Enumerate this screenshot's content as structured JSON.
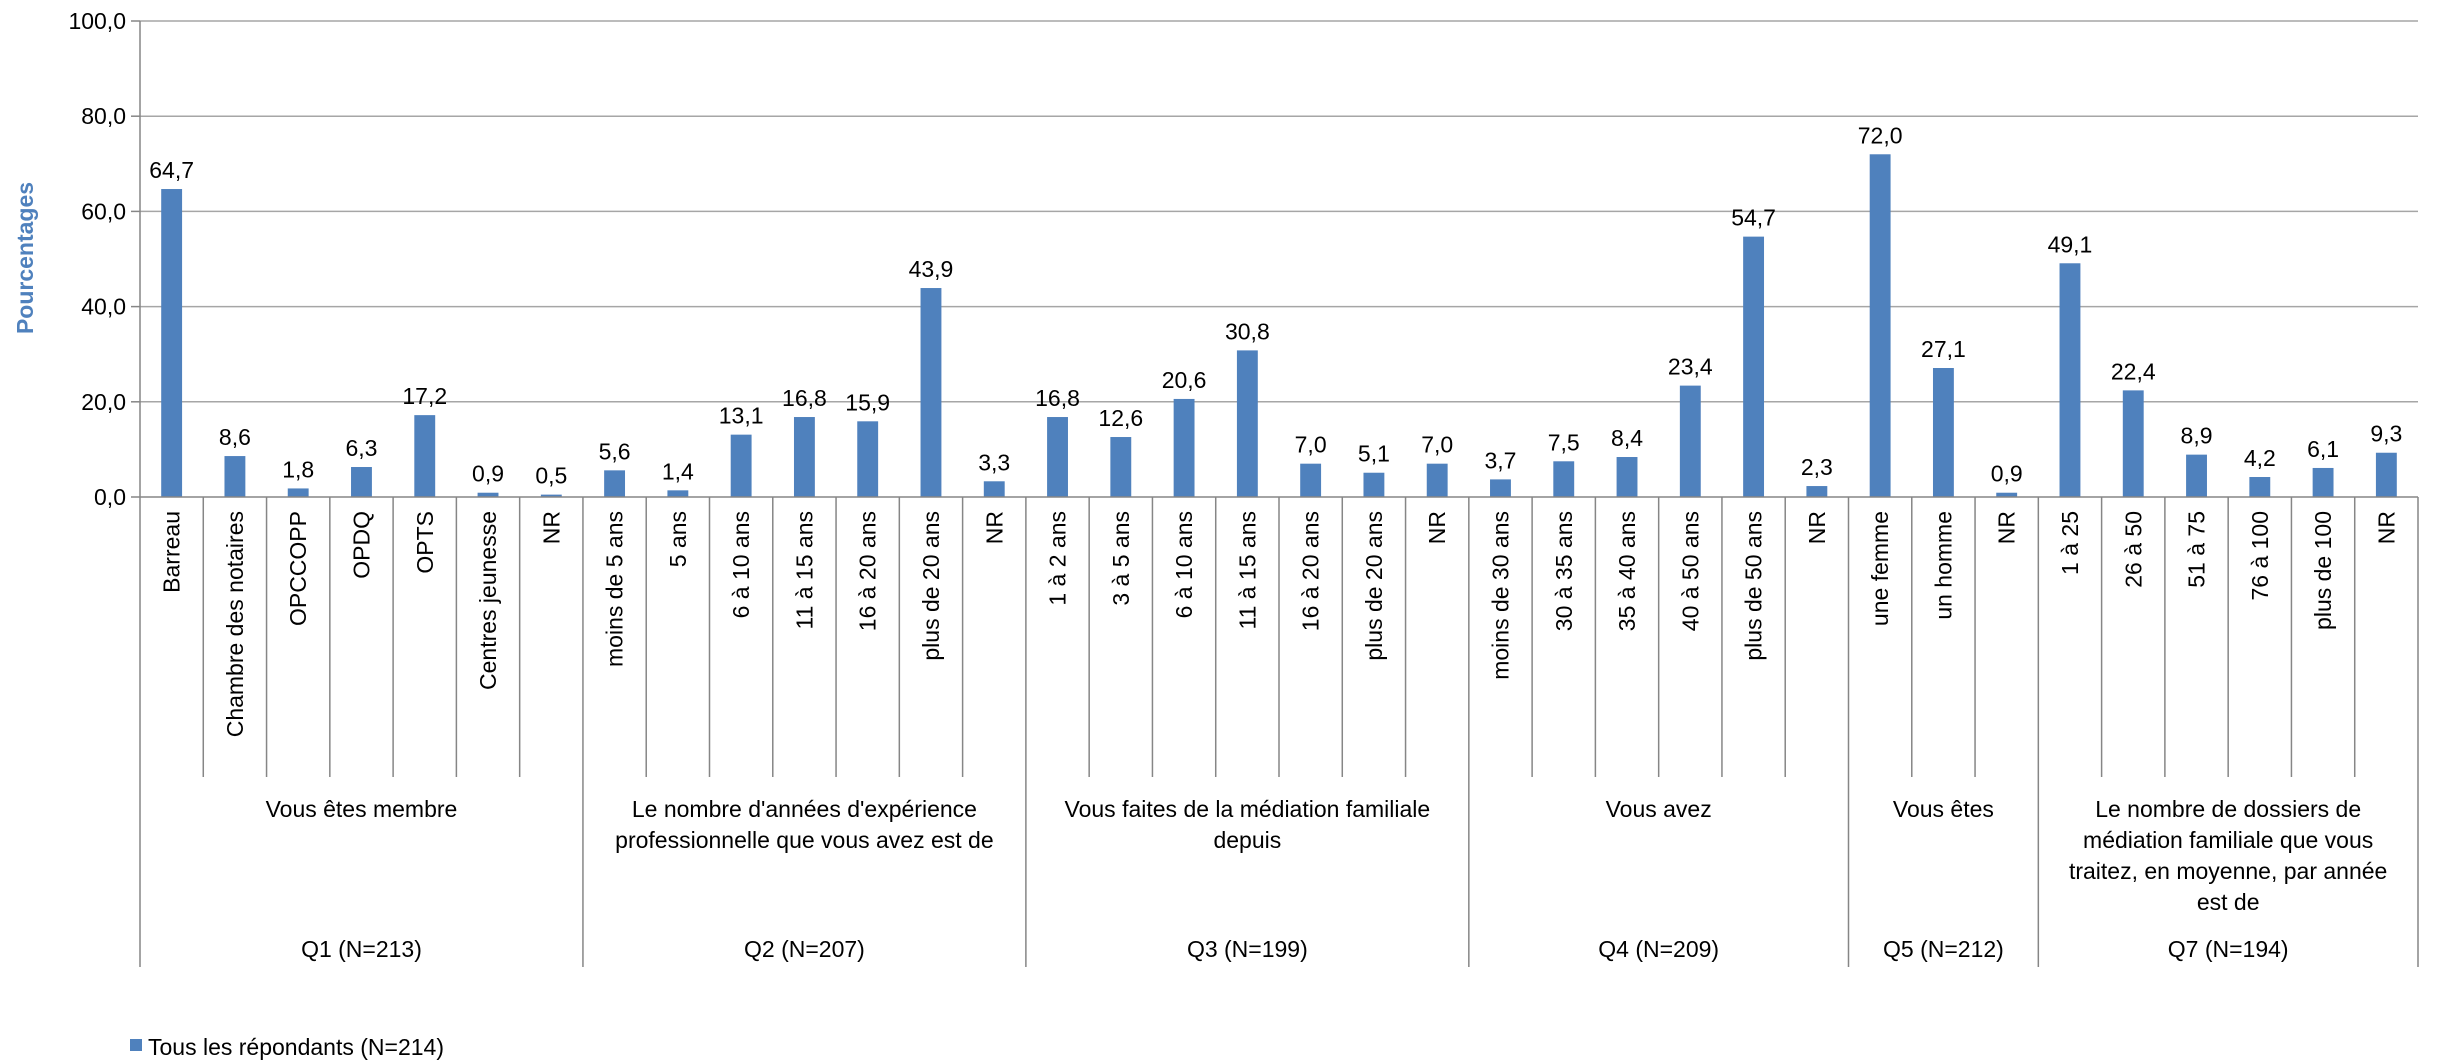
{
  "colors": {
    "bar": "#4F81BD",
    "axis_title": "#4F81BD",
    "grid": "#A6A6A6",
    "axis": "#868686",
    "text": "#000000"
  },
  "chart_data": {
    "type": "bar",
    "ylabel": "Pourcentages",
    "ylim": [
      0,
      100
    ],
    "yticks": [
      "0,0",
      "20,0",
      "40,0",
      "60,0",
      "80,0",
      "100,0"
    ],
    "grid": true,
    "legend_position": "bottom-left",
    "series": [
      {
        "name": "Tous les répondants (N=214)"
      }
    ],
    "groups": [
      {
        "question": "Q1 (N=213)",
        "label": [
          "Vous êtes membre"
        ],
        "categories": [
          "Barreau",
          "Chambre des notaires",
          "OPCCOPP",
          "OPDQ",
          "OPTS",
          "Centres jeunesse",
          "NR"
        ],
        "values": [
          64.7,
          8.6,
          1.8,
          6.3,
          17.2,
          0.9,
          0.5
        ],
        "value_labels": [
          "64,7",
          "8,6",
          "1,8",
          "6,3",
          "17,2",
          "0,9",
          "0,5"
        ]
      },
      {
        "question": "Q2 (N=207)",
        "label": [
          "Le nombre d'années d'expérience",
          "professionnelle que vous avez est de"
        ],
        "categories": [
          "moins de 5 ans",
          "5 ans",
          "6 à 10 ans",
          "11 à 15 ans",
          "16 à 20 ans",
          "plus de 20 ans",
          "NR"
        ],
        "values": [
          5.6,
          1.4,
          13.1,
          16.8,
          15.9,
          43.9,
          3.3
        ],
        "value_labels": [
          "5,6",
          "1,4",
          "13,1",
          "16,8",
          "15,9",
          "43,9",
          "3,3"
        ]
      },
      {
        "question": "Q3 (N=199)",
        "label": [
          "Vous faites de la médiation familiale",
          "depuis"
        ],
        "categories": [
          "1 à 2 ans",
          "3 à 5 ans",
          "6 à 10 ans",
          "11 à 15 ans",
          "16 à 20 ans",
          "plus de 20 ans",
          "NR"
        ],
        "values": [
          16.8,
          12.6,
          20.6,
          30.8,
          7.0,
          5.1,
          7.0
        ],
        "value_labels": [
          "16,8",
          "12,6",
          "20,6",
          "30,8",
          "7,0",
          "5,1",
          "7,0"
        ]
      },
      {
        "question": "Q4 (N=209)",
        "label": [
          "Vous avez"
        ],
        "categories": [
          "moins de 30 ans",
          "30 à 35 ans",
          "35 à 40 ans",
          "40 à 50 ans",
          "plus de 50 ans",
          "NR"
        ],
        "values": [
          3.7,
          7.5,
          8.4,
          23.4,
          54.7,
          2.3
        ],
        "value_labels": [
          "3,7",
          "7,5",
          "8,4",
          "23,4",
          "54,7",
          "2,3"
        ]
      },
      {
        "question": "Q5 (N=212)",
        "label": [
          "Vous êtes"
        ],
        "categories": [
          "une femme",
          "un homme",
          "NR"
        ],
        "values": [
          72.0,
          27.1,
          0.9
        ],
        "value_labels": [
          "72,0",
          "27,1",
          "0,9"
        ]
      },
      {
        "question": "Q7 (N=194)",
        "label": [
          "Le nombre de dossiers de",
          "médiation familiale que vous",
          "traitez, en moyenne, par année",
          "est de"
        ],
        "categories": [
          "1 à 25",
          "26 à 50",
          "51 à 75",
          "76 à 100",
          "plus de 100",
          "NR"
        ],
        "values": [
          49.1,
          22.4,
          8.9,
          4.2,
          6.1,
          9.3
        ],
        "value_labels": [
          "49,1",
          "22,4",
          "8,9",
          "4,2",
          "6,1",
          "9,3"
        ]
      }
    ]
  }
}
